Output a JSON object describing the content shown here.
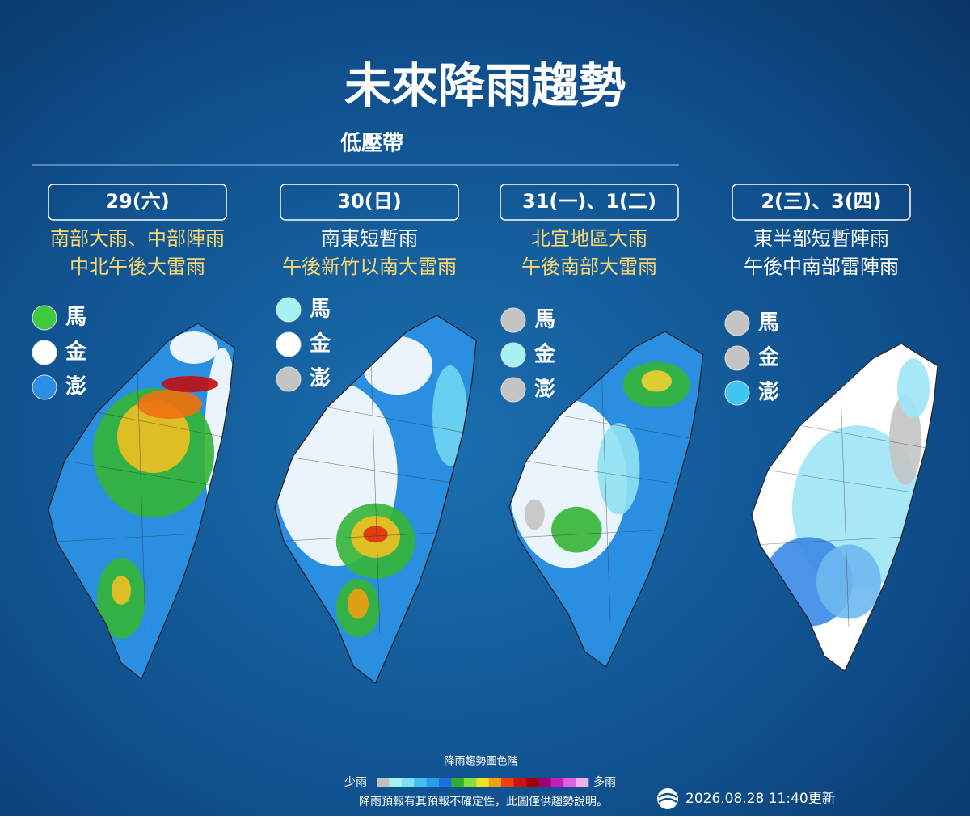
{
  "header": {
    "title": "未來降雨趨勢",
    "subtitle": "低壓帶"
  },
  "panels": [
    {
      "date": "29(六)",
      "lines": [
        {
          "text": "南部大雨、中部陣雨",
          "color": "#f7d774"
        },
        {
          "text": "中北午後大雷雨",
          "color": "#f7d774"
        }
      ],
      "islands": [
        {
          "name": "馬",
          "color": "#3ec93e"
        },
        {
          "name": "金",
          "color": "#ffffff"
        },
        {
          "name": "澎",
          "color": "#2b8fe8"
        }
      ]
    },
    {
      "date": "30(日)",
      "lines": [
        {
          "text": "南東短暫雨",
          "color": "#ffffff"
        },
        {
          "text": "午後新竹以南大雷雨",
          "color": "#f7d774"
        }
      ],
      "islands": [
        {
          "name": "馬",
          "color": "#a6f2f2"
        },
        {
          "name": "金",
          "color": "#ffffff"
        },
        {
          "name": "澎",
          "color": "#c4c4c4"
        }
      ]
    },
    {
      "date": "31(一)、1(二)",
      "lines": [
        {
          "text": "北宜地區大雨",
          "color": "#f7d774"
        },
        {
          "text": "午後南部大雷雨",
          "color": "#f7d774"
        }
      ],
      "islands": [
        {
          "name": "馬",
          "color": "#c4c4c4"
        },
        {
          "name": "金",
          "color": "#a6f2f2"
        },
        {
          "name": "澎",
          "color": "#c4c4c4"
        }
      ]
    },
    {
      "date": "2(三)、3(四)",
      "lines": [
        {
          "text": "東半部短暫陣雨",
          "color": "#ffffff"
        },
        {
          "text": "午後中南部雷陣雨",
          "color": "#ffffff"
        }
      ],
      "islands": [
        {
          "name": "馬",
          "color": "#c4c4c4"
        },
        {
          "name": "金",
          "color": "#c4c4c4"
        },
        {
          "name": "澎",
          "color": "#3fc6f2"
        }
      ]
    }
  ],
  "scale": {
    "title": "降雨趨勢圖色階",
    "low": "少雨",
    "high": "多雨",
    "colors": [
      "#c0c0c0",
      "#a6f2f2",
      "#7fe0f5",
      "#40c0f0",
      "#2a9ce8",
      "#1f6fe0",
      "#30b030",
      "#80e040",
      "#f0e020",
      "#f0a010",
      "#f04010",
      "#d01010",
      "#a00000",
      "#a00070",
      "#c020c0",
      "#e060e0",
      "#f0b0f0"
    ]
  },
  "footer": {
    "note": "降雨預報有其預報不確定性，此圖僅供趨勢說明。",
    "updated": "2026.08.28  11:40更新"
  }
}
